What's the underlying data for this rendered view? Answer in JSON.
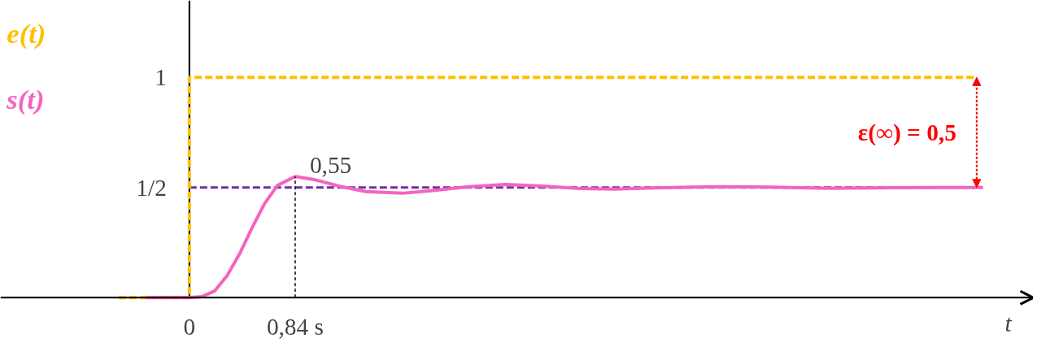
{
  "chart_data": {
    "type": "line",
    "xlabel": "t",
    "xlim": [
      -1.5,
      6.7
    ],
    "ylim": [
      -0.2,
      1.35
    ],
    "xticks": [
      0,
      {
        "value": 0.84,
        "label": "0,84 s"
      }
    ],
    "yticks": [
      {
        "value": 0.5,
        "label": "1/2"
      },
      1
    ],
    "grid": false,
    "series": [
      {
        "name": "e(t)",
        "color": "#ffc000",
        "line_style": "dashed",
        "x": [
          -0.56,
          0,
          0,
          6.25
        ],
        "values": [
          0,
          0,
          1,
          1
        ]
      },
      {
        "name": "s(t)",
        "color": "#f563c0",
        "line_style": "solid",
        "x": [
          -0.34,
          0,
          0.1,
          0.2,
          0.3,
          0.4,
          0.5,
          0.6,
          0.7,
          0.84,
          1.0,
          1.2,
          1.4,
          1.69,
          1.95,
          2.2,
          2.51,
          2.8,
          3.1,
          3.37,
          3.7,
          4.0,
          4.22,
          4.6,
          5.07,
          5.6,
          6.0,
          6.3
        ],
        "values": [
          0,
          0,
          0.005,
          0.03,
          0.1,
          0.2,
          0.32,
          0.43,
          0.51,
          0.55,
          0.535,
          0.505,
          0.482,
          0.474,
          0.487,
          0.503,
          0.514,
          0.507,
          0.496,
          0.493,
          0.498,
          0.502,
          0.504,
          0.502,
          0.497,
          0.499,
          0.5,
          0.5
        ]
      }
    ],
    "ref_lines": [
      {
        "axis": "y",
        "value": 0.5,
        "color": "#7030a0",
        "line_style": "dashed"
      }
    ],
    "annotations": [
      {
        "text": "0,55",
        "x": 0.84,
        "y": 0.55
      },
      "ε(∞) = 0,5"
    ]
  }
}
